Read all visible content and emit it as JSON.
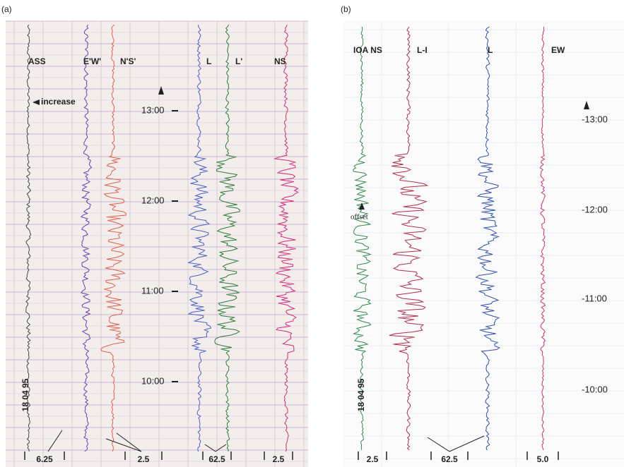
{
  "panels": [
    {
      "label": "(a)",
      "traces": [
        "ASS",
        "E'W'",
        "N'S'",
        "L",
        "L'",
        "NS"
      ],
      "annotation": "increase",
      "times": [
        "13:00",
        "12:00",
        "11:00",
        "10:00"
      ],
      "date": "18 04 95",
      "scales": [
        "6.25",
        "2.5",
        "62.5",
        "2.5"
      ]
    },
    {
      "label": "(b)",
      "traces": [
        "IOA NS",
        "L-I",
        "L",
        "EW"
      ],
      "annotation": "offset",
      "times": [
        "-13:00",
        "-12:00",
        "-11:00",
        "-10:00"
      ],
      "date": "18 04 95",
      "scales": [
        "2.5",
        "62.5",
        "5.0"
      ]
    }
  ]
}
